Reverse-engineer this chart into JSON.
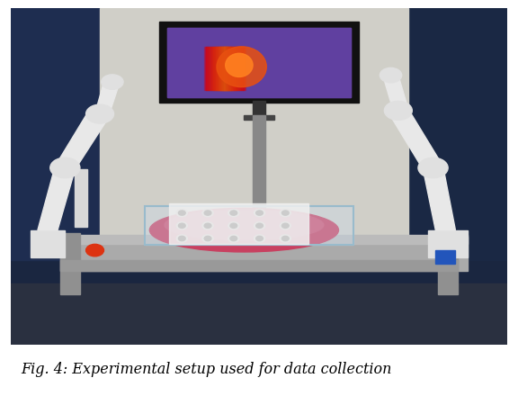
{
  "caption": "Fig. 4: Experimental setup used for data collection",
  "caption_fontsize": 11.5,
  "caption_color": "#000000",
  "background_color": "#ffffff",
  "fig_width": 5.76,
  "fig_height": 4.4,
  "dpi": 100
}
